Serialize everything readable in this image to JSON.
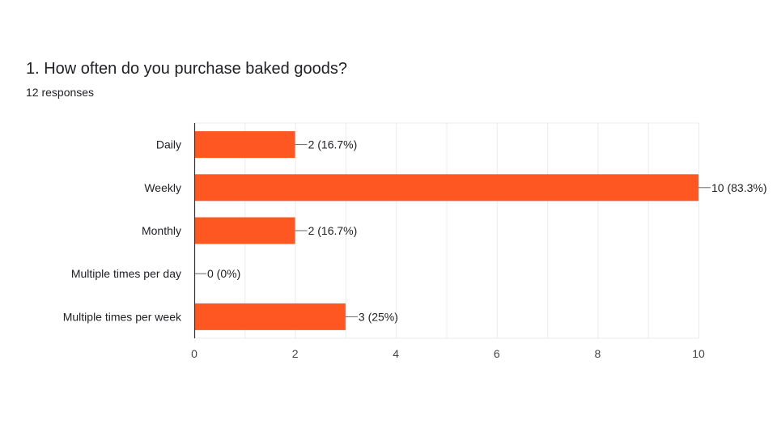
{
  "question": {
    "title": "1. How often do you purchase baked goods?",
    "responses": "12 responses"
  },
  "colors": {
    "bar": "#ff5722",
    "gridline": "#ebebeb",
    "axis": "#333333",
    "text": "#202124",
    "tick_text": "#444444"
  },
  "chart_data": {
    "type": "bar",
    "orientation": "horizontal",
    "categories": [
      "Daily",
      "Weekly",
      "Monthly",
      "Multiple times per day",
      "Multiple times per week"
    ],
    "values": [
      2,
      10,
      2,
      0,
      3
    ],
    "data_labels": [
      "2 (16.7%)",
      "10 (83.3%)",
      "2 (16.7%)",
      "0 (0%)",
      "3 (25%)"
    ],
    "xlim": [
      0,
      10
    ],
    "x_ticks": [
      0,
      2,
      4,
      6,
      8,
      10
    ],
    "grid": true,
    "legend": "none"
  }
}
